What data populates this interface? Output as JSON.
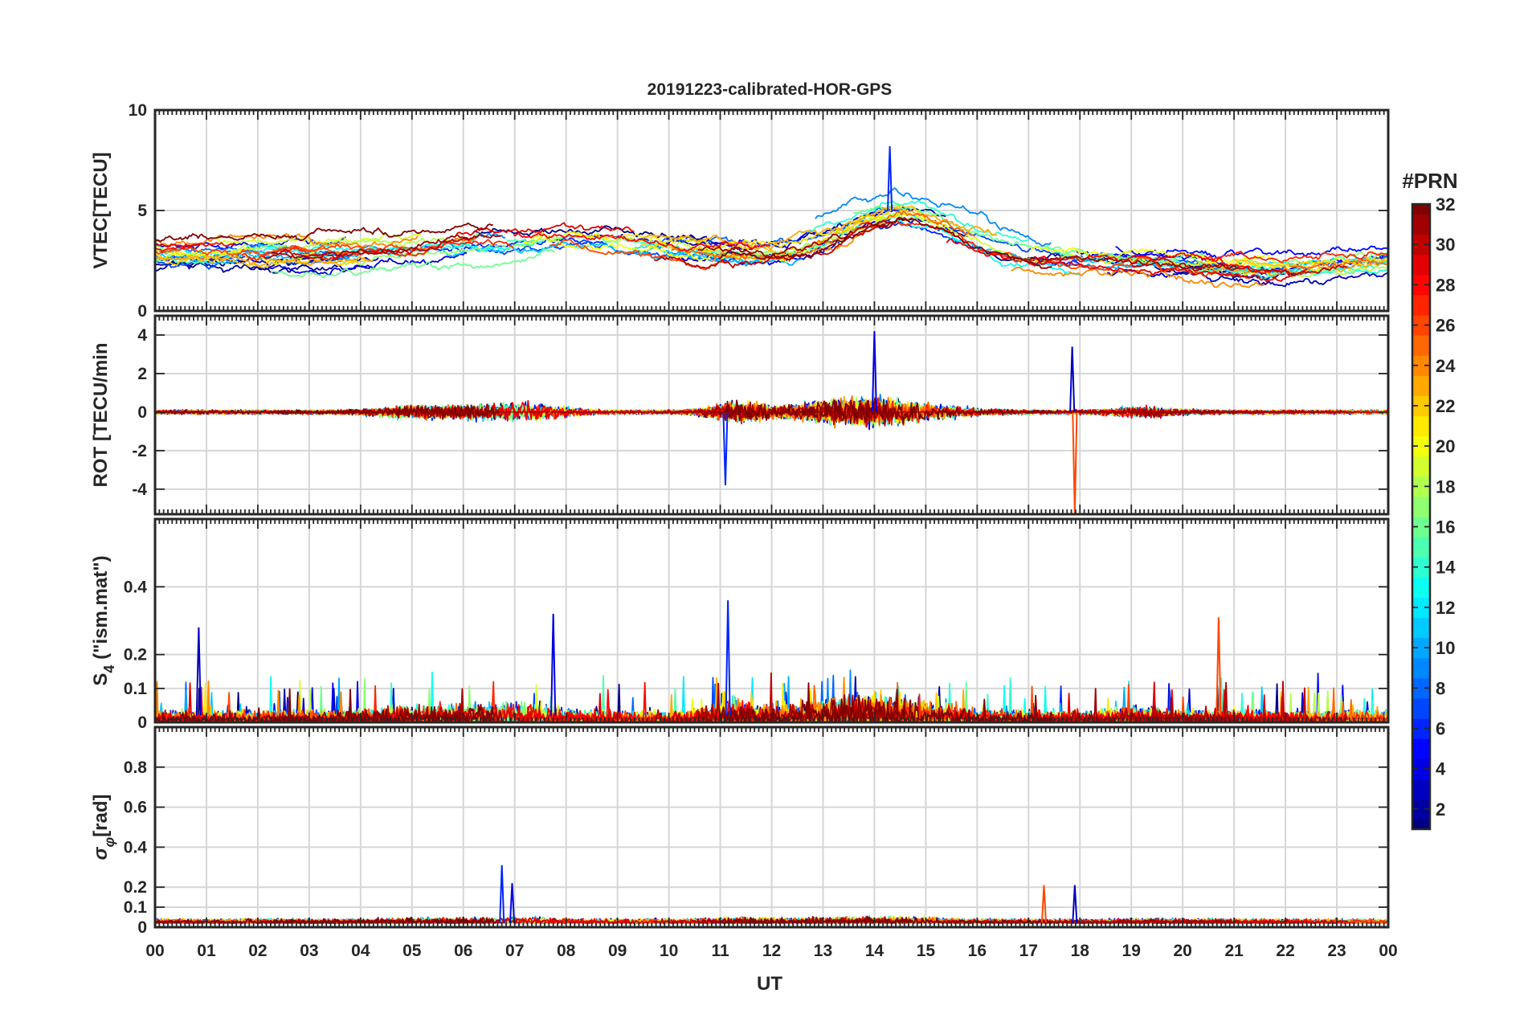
{
  "chart_data": {
    "type": "line",
    "title": "20191223-calibrated-HOR-GPS",
    "xlabel": "UT",
    "x_tick_labels": [
      "00",
      "01",
      "02",
      "03",
      "04",
      "05",
      "06",
      "07",
      "08",
      "09",
      "10",
      "11",
      "12",
      "13",
      "14",
      "15",
      "16",
      "17",
      "18",
      "19",
      "20",
      "21",
      "22",
      "23",
      "00"
    ],
    "xlim": [
      0,
      24
    ],
    "grid": true,
    "colorbar": {
      "title": "#PRN",
      "colormap": "jet",
      "range": [
        1,
        32
      ],
      "ticks": [
        2,
        4,
        6,
        8,
        10,
        12,
        14,
        16,
        18,
        20,
        22,
        24,
        26,
        28,
        30,
        32
      ],
      "tick_labels": [
        "2",
        "4",
        "6",
        "8",
        "10",
        "12",
        "14",
        "16",
        "18",
        "20",
        "22",
        "24",
        "26",
        "28",
        "30",
        "32"
      ]
    },
    "panels": [
      {
        "id": "vtec",
        "ylabel": "VTEC[TECU]",
        "ylim": [
          0,
          10
        ],
        "yticks": [
          0,
          5,
          10
        ],
        "ytick_labels": [
          "0",
          "5",
          "10"
        ],
        "typical_range": [
          1,
          8.3
        ],
        "peak": {
          "x": 14.3,
          "y": 8.2
        }
      },
      {
        "id": "rot",
        "ylabel": "ROT [TECU/min",
        "ylim": [
          -5.3,
          5
        ],
        "yticks": [
          -4,
          -2,
          0,
          2,
          4
        ],
        "ytick_labels": [
          "-4",
          "-2",
          "0",
          "2",
          "4"
        ],
        "typical_range": [
          -5.3,
          4.2
        ],
        "spikes": [
          {
            "x": 11.1,
            "y": -3.8
          },
          {
            "x": 14.0,
            "y": 4.2
          },
          {
            "x": 17.9,
            "y": -5.3
          },
          {
            "x": 17.85,
            "y": 3.4
          }
        ]
      },
      {
        "id": "s4",
        "ylabel": "S4 (\"ism.mat\")",
        "ylabel_main": "S",
        "ylabel_sub": "4",
        "ylabel_rest": " (\"ism.mat\")",
        "ylim": [
          0,
          0.6
        ],
        "yticks": [
          0,
          0.1,
          0.2,
          0.4
        ],
        "ytick_labels": [
          "0",
          "0.1",
          "0.2",
          "0.4"
        ],
        "typical_range": [
          0,
          0.36
        ],
        "peaks": [
          {
            "x": 11.15,
            "y": 0.36
          },
          {
            "x": 7.75,
            "y": 0.32
          },
          {
            "x": 20.7,
            "y": 0.31
          },
          {
            "x": 0.85,
            "y": 0.28
          }
        ]
      },
      {
        "id": "sigma",
        "ylabel": "σφ[rad]",
        "ylabel_main": "σ",
        "ylabel_sub": "φ",
        "ylabel_rest": "[rad]",
        "ylim": [
          0,
          1
        ],
        "yticks": [
          0,
          0.1,
          0.2,
          0.4,
          0.6,
          0.8
        ],
        "ytick_labels": [
          "0",
          "0.1",
          "0.2",
          "0.4",
          "0.6",
          "0.8"
        ],
        "typical_range": [
          0,
          0.31
        ],
        "peaks": [
          {
            "x": 6.75,
            "y": 0.31
          },
          {
            "x": 6.95,
            "y": 0.22
          },
          {
            "x": 17.3,
            "y": 0.21
          },
          {
            "x": 17.9,
            "y": 0.21
          }
        ]
      }
    ]
  }
}
